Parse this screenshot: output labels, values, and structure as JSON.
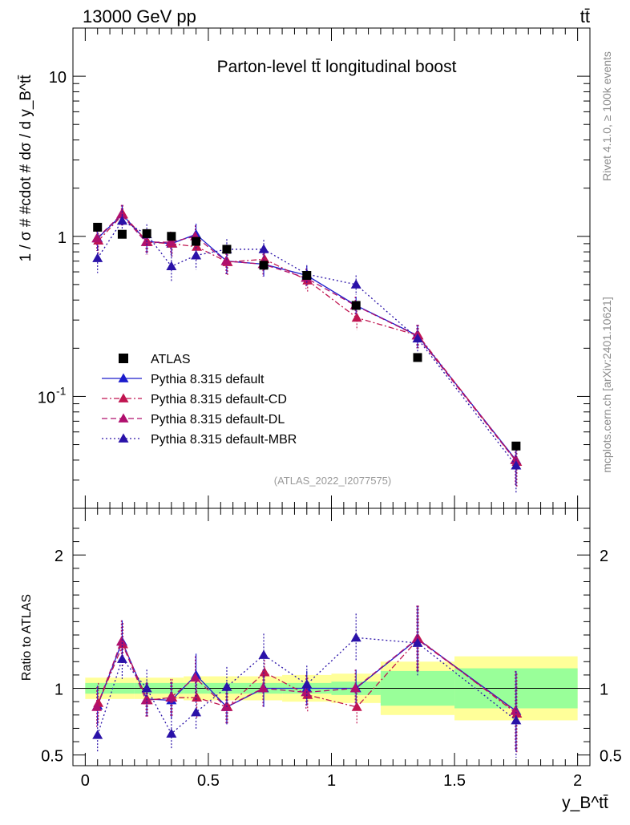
{
  "header": {
    "left": "13000 GeV pp",
    "right": "tt̄"
  },
  "side_labels": {
    "rivet": "Rivet 4.1.0, ≥ 100k events",
    "mcplots": "mcplots.cern.ch [arXiv:2401.10621]"
  },
  "chart_data": [
    {
      "type": "line",
      "title": "Parton-level tt̄ longitudinal boost",
      "ylabel": "1 / σ # #cdot # dσ / d y_B^tt̄",
      "xlabel": "y_B^tt̄",
      "yscale": "log",
      "ylim": [
        0.02,
        20
      ],
      "xlim": [
        -0.05,
        2.05
      ],
      "watermark": "(ATLAS_2022_I2077575)",
      "ytick_labels": [
        "10",
        "1",
        "10^-1"
      ],
      "x": [
        0.05,
        0.15,
        0.25,
        0.35,
        0.45,
        0.575,
        0.725,
        0.9,
        1.1,
        1.35,
        1.75
      ],
      "bin_edges": [
        0.0,
        0.1,
        0.2,
        0.3,
        0.4,
        0.5,
        0.65,
        0.8,
        1.0,
        1.2,
        1.5,
        2.0
      ],
      "series": [
        {
          "name": "ATLAS",
          "color": "#000000",
          "marker": "square",
          "line": "none",
          "values": [
            1.14,
            1.03,
            1.04,
            1.0,
            0.93,
            0.83,
            0.66,
            0.57,
            0.37,
            0.175,
            0.049
          ]
        },
        {
          "name": "Pythia 8.315 default",
          "color": "#1c1ccc",
          "marker": "triangle",
          "line": "solid",
          "values": [
            0.97,
            1.37,
            0.93,
            0.9,
            1.03,
            0.7,
            0.67,
            0.57,
            0.37,
            0.24,
            0.04
          ],
          "err": [
            0.16,
            0.2,
            0.15,
            0.15,
            0.17,
            0.12,
            0.11,
            0.08,
            0.05,
            0.04,
            0.012
          ]
        },
        {
          "name": "Pythia 8.315 default-CD",
          "color": "#c01550",
          "marker": "triangle",
          "line": "dashdot",
          "values": [
            0.94,
            1.37,
            0.92,
            0.9,
            0.86,
            0.69,
            0.72,
            0.53,
            0.31,
            0.24,
            0.039
          ],
          "err": [
            0.16,
            0.2,
            0.15,
            0.15,
            0.15,
            0.12,
            0.11,
            0.08,
            0.05,
            0.04,
            0.012
          ]
        },
        {
          "name": "Pythia 8.315 default-DL",
          "color": "#b0106e",
          "marker": "triangle",
          "line": "dashed",
          "values": [
            0.97,
            1.37,
            0.92,
            0.92,
            1.0,
            0.7,
            0.67,
            0.55,
            0.37,
            0.24,
            0.04
          ],
          "err": [
            0.16,
            0.2,
            0.15,
            0.15,
            0.17,
            0.12,
            0.11,
            0.08,
            0.05,
            0.04,
            0.012
          ]
        },
        {
          "name": "Pythia 8.315 default-MBR",
          "color": "#2a12a8",
          "marker": "triangle",
          "line": "dotted",
          "values": [
            0.73,
            1.25,
            1.03,
            0.65,
            0.76,
            0.83,
            0.83,
            0.58,
            0.5,
            0.23,
            0.037
          ],
          "err": [
            0.14,
            0.19,
            0.16,
            0.13,
            0.14,
            0.13,
            0.12,
            0.08,
            0.07,
            0.04,
            0.012
          ]
        }
      ]
    },
    {
      "type": "line",
      "ylabel": "Ratio to ATLAS",
      "xlabel": "y_B^tt̄",
      "ylim": [
        0.42,
        2.35
      ],
      "xlim": [
        -0.05,
        2.05
      ],
      "ytick_labels": [
        "2",
        "1",
        "0.5"
      ],
      "xtick_labels": [
        "0",
        "0.5",
        "1",
        "1.5",
        "2"
      ],
      "band_inner": [
        0.04,
        0.04,
        0.04,
        0.04,
        0.04,
        0.04,
        0.04,
        0.04,
        0.05,
        0.13,
        0.15
      ],
      "band_outer": [
        0.08,
        0.08,
        0.08,
        0.08,
        0.09,
        0.09,
        0.09,
        0.1,
        0.11,
        0.2,
        0.24
      ],
      "series": [
        {
          "name": "Pythia 8.315 default",
          "values": [
            0.87,
            1.35,
            0.92,
            0.91,
            1.1,
            0.86,
            1.0,
            1.0,
            1.0,
            1.37,
            0.83
          ],
          "err": [
            0.15,
            0.16,
            0.13,
            0.14,
            0.16,
            0.13,
            0.14,
            0.13,
            0.14,
            0.25,
            0.3
          ]
        },
        {
          "name": "Pythia 8.315 default-CD",
          "values": [
            0.89,
            1.33,
            0.91,
            0.93,
            0.93,
            0.86,
            1.12,
            0.95,
            0.86,
            1.37,
            0.81
          ],
          "err": [
            0.15,
            0.16,
            0.13,
            0.14,
            0.15,
            0.13,
            0.14,
            0.13,
            0.13,
            0.25,
            0.3
          ]
        },
        {
          "name": "Pythia 8.315 default-DL",
          "values": [
            0.86,
            1.35,
            0.91,
            0.93,
            1.08,
            0.86,
            1.0,
            0.97,
            1.0,
            1.37,
            0.83
          ],
          "err": [
            0.15,
            0.16,
            0.13,
            0.14,
            0.16,
            0.13,
            0.14,
            0.13,
            0.14,
            0.25,
            0.3
          ]
        },
        {
          "name": "Pythia 8.315 default-MBR",
          "values": [
            0.65,
            1.22,
            1.0,
            0.66,
            0.82,
            1.01,
            1.25,
            1.03,
            1.38,
            1.34,
            0.76
          ],
          "err": [
            0.13,
            0.15,
            0.14,
            0.12,
            0.13,
            0.15,
            0.16,
            0.14,
            0.18,
            0.25,
            0.28
          ]
        }
      ]
    }
  ]
}
